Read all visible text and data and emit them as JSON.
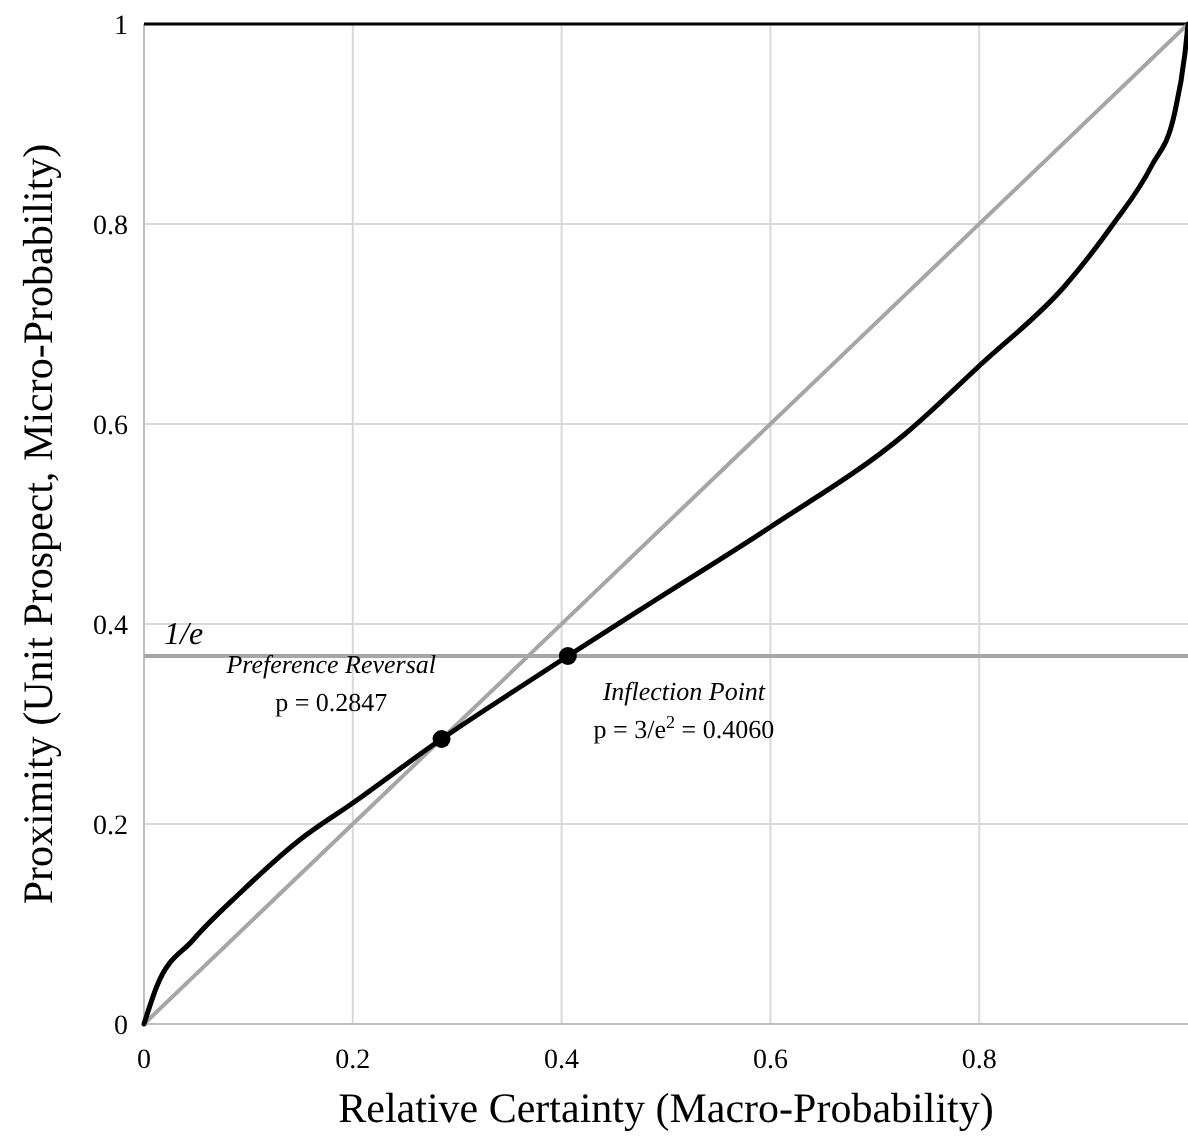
{
  "chart_data": {
    "type": "line",
    "xlabel": "Relative Certainty (Macro-Probability)",
    "ylabel": "Proximity (Unit Prospect, Micro-Probability)",
    "xlim": [
      0,
      1
    ],
    "ylim": [
      0,
      1
    ],
    "xticks": [
      0,
      0.2,
      0.4,
      0.6,
      0.8
    ],
    "yticks": [
      0,
      0.2,
      0.4,
      0.6,
      0.8,
      1
    ],
    "grid": true,
    "series": [
      {
        "color": "#a6a6a6",
        "marker": "none",
        "x": [
          0,
          1
        ],
        "values": [
          0,
          1
        ]
      },
      {
        "color": "#000000",
        "marker": "none",
        "x": [
          0,
          0.012,
          0.047,
          0.092,
          0.149,
          0.2,
          0.285,
          0.35,
          0.406,
          0.49,
          0.6,
          0.729,
          0.802,
          0.882,
          0.927,
          0.965,
          0.987,
          0.997,
          1
        ],
        "values": [
          0,
          0.037,
          0.084,
          0.131,
          0.184,
          0.221,
          0.285,
          0.33,
          0.368,
          0.424,
          0.497,
          0.59,
          0.66,
          0.738,
          0.798,
          0.858,
          0.91,
          0.97,
          1
        ]
      },
      {
        "type": "scatter",
        "color": "#000000",
        "marker": "circle",
        "x": [
          0.285,
          0.406
        ],
        "values": [
          0.285,
          0.368
        ]
      }
    ],
    "ref_lines": [
      {
        "axis": "y",
        "value": 0.3679,
        "label": "1/e",
        "color": "#a6a6a6"
      }
    ],
    "annotations": [
      {
        "text": "Preference Reversal\np = 0.2847",
        "x": 0.2847,
        "y": 0.2847
      },
      {
        "text": "Inflection Point\np = 3/e$^{2}$ = 0.4060",
        "x": 0.406,
        "y": 0.3679
      }
    ]
  }
}
